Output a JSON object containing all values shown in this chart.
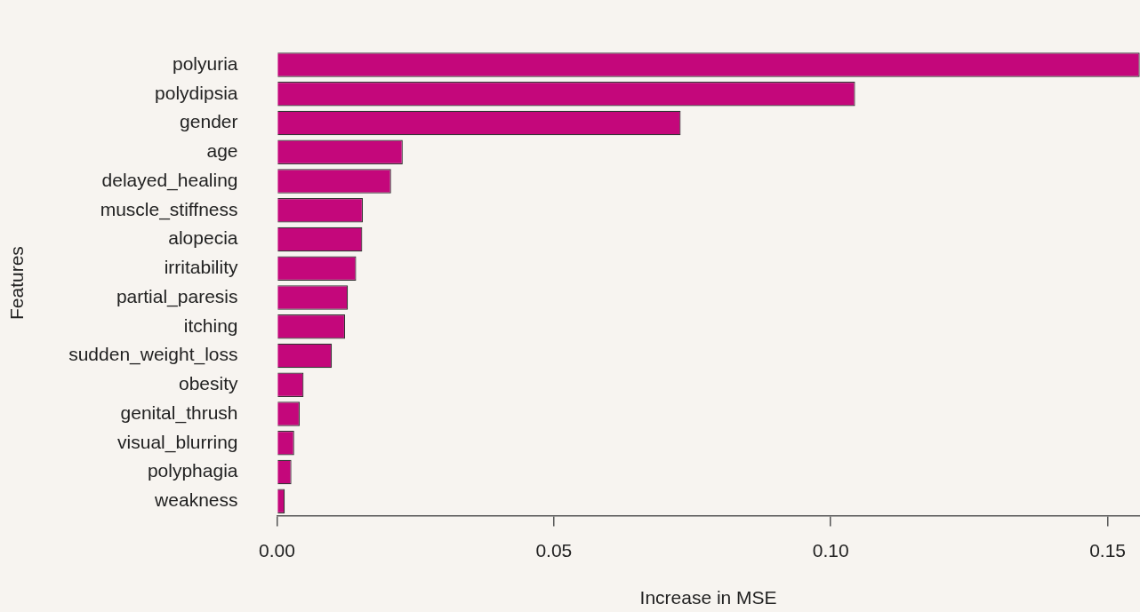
{
  "chart_data": {
    "type": "bar",
    "orientation": "horizontal",
    "xlabel": "Increase in MSE",
    "ylabel": "Features",
    "categories": [
      "polyuria",
      "polydipsia",
      "gender",
      "age",
      "delayed_healing",
      "muscle_stiffness",
      "alopecia",
      "irritability",
      "partial_paresis",
      "itching",
      "sudden_weight_loss",
      "obesity",
      "genital_thrush",
      "visual_blurring",
      "polyphagia",
      "weakness"
    ],
    "values": [
      0.1558,
      0.1044,
      0.0729,
      0.0227,
      0.0206,
      0.0155,
      0.0154,
      0.0143,
      0.0128,
      0.0123,
      0.0099,
      0.0048,
      0.0041,
      0.0031,
      0.0026,
      0.0014
    ],
    "color": "#c4077b",
    "xlim": [
      0,
      0.1558
    ],
    "xticks": [
      {
        "value": 0,
        "label": "0.00"
      },
      {
        "value": 0.05,
        "label": "0.05"
      },
      {
        "value": 0.1,
        "label": "0.10"
      },
      {
        "value": 0.15,
        "label": "0.15"
      }
    ],
    "grid": false,
    "legend": false
  }
}
